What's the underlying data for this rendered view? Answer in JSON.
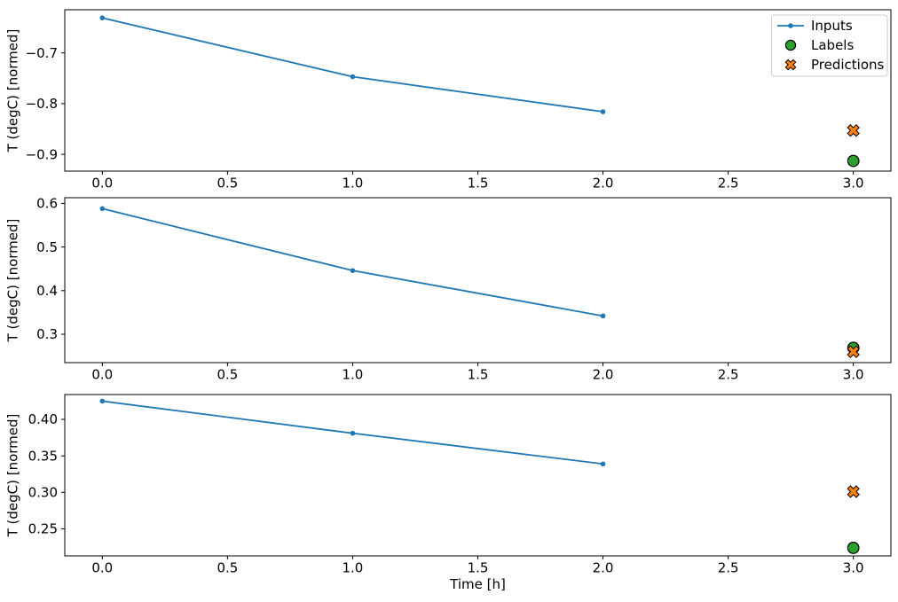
{
  "figure": {
    "background": "#ffffff",
    "text_color": "#000000"
  },
  "colors": {
    "inputs": "#1f77b4",
    "labels": "#2ca02c",
    "predictions": "#ff7f0e",
    "marker_edge": "#000000",
    "axis": "#000000",
    "legend_border": "#cccccc",
    "legend_bg": "#ffffff"
  },
  "xlabel": "Time [h]",
  "ylabel": "T (degC) [normed]",
  "legend": {
    "position": "upper right",
    "items": [
      "Inputs",
      "Labels",
      "Predictions"
    ]
  },
  "chart_data": [
    {
      "type": "line",
      "ylabel": "T (degC) [normed]",
      "xlabel": "",
      "xlim": [
        -0.15,
        3.15
      ],
      "ylim": [
        -0.933,
        -0.615
      ],
      "xticks": {
        "values": [
          0,
          0.5,
          1,
          1.5,
          2,
          2.5,
          3
        ],
        "labels": [
          "0.0",
          "0.5",
          "1.0",
          "1.5",
          "2.0",
          "2.5",
          "3.0"
        ]
      },
      "yticks": {
        "values": [
          -0.9,
          -0.8,
          -0.7
        ],
        "labels": [
          "−0.9",
          "−0.8",
          "−0.7"
        ]
      },
      "legend": true,
      "grid": false,
      "series": [
        {
          "name": "Inputs",
          "plot": "line",
          "marker": "point",
          "color": "#1f77b4",
          "x": [
            0,
            1,
            2
          ],
          "y": [
            -0.631,
            -0.747,
            -0.816
          ]
        },
        {
          "name": "Labels",
          "plot": "scatter",
          "marker": "circle",
          "color": "#2ca02c",
          "edgecolor": "#000000",
          "x": [
            3
          ],
          "y": [
            -0.913
          ]
        },
        {
          "name": "Predictions",
          "plot": "scatter",
          "marker": "X",
          "color": "#ff7f0e",
          "edgecolor": "#000000",
          "x": [
            3
          ],
          "y": [
            -0.853
          ]
        }
      ]
    },
    {
      "type": "line",
      "ylabel": "T (degC) [normed]",
      "xlabel": "",
      "xlim": [
        -0.15,
        3.15
      ],
      "ylim": [
        0.235,
        0.613
      ],
      "xticks": {
        "values": [
          0,
          0.5,
          1,
          1.5,
          2,
          2.5,
          3
        ],
        "labels": [
          "0.0",
          "0.5",
          "1.0",
          "1.5",
          "2.0",
          "2.5",
          "3.0"
        ]
      },
      "yticks": {
        "values": [
          0.3,
          0.4,
          0.5,
          0.6
        ],
        "labels": [
          "0.3",
          "0.4",
          "0.5",
          "0.6"
        ]
      },
      "legend": false,
      "grid": false,
      "series": [
        {
          "name": "Inputs",
          "plot": "line",
          "marker": "point",
          "color": "#1f77b4",
          "x": [
            0,
            1,
            2
          ],
          "y": [
            0.588,
            0.446,
            0.342
          ]
        },
        {
          "name": "Labels",
          "plot": "scatter",
          "marker": "circle",
          "color": "#2ca02c",
          "edgecolor": "#000000",
          "x": [
            3
          ],
          "y": [
            0.269
          ]
        },
        {
          "name": "Predictions",
          "plot": "scatter",
          "marker": "X",
          "color": "#ff7f0e",
          "edgecolor": "#000000",
          "x": [
            3
          ],
          "y": [
            0.26
          ]
        }
      ]
    },
    {
      "type": "line",
      "ylabel": "T (degC) [normed]",
      "xlabel": "Time [h]",
      "xlim": [
        -0.15,
        3.15
      ],
      "ylim": [
        0.213,
        0.434
      ],
      "xticks": {
        "values": [
          0,
          0.5,
          1,
          1.5,
          2,
          2.5,
          3
        ],
        "labels": [
          "0.0",
          "0.5",
          "1.0",
          "1.5",
          "2.0",
          "2.5",
          "3.0"
        ]
      },
      "yticks": {
        "values": [
          0.25,
          0.3,
          0.35,
          0.4
        ],
        "labels": [
          "0.25",
          "0.30",
          "0.35",
          "0.40"
        ]
      },
      "legend": false,
      "grid": false,
      "series": [
        {
          "name": "Inputs",
          "plot": "line",
          "marker": "point",
          "color": "#1f77b4",
          "x": [
            0,
            1,
            2
          ],
          "y": [
            0.425,
            0.381,
            0.339
          ]
        },
        {
          "name": "Labels",
          "plot": "scatter",
          "marker": "circle",
          "color": "#2ca02c",
          "edgecolor": "#000000",
          "x": [
            3
          ],
          "y": [
            0.224
          ]
        },
        {
          "name": "Predictions",
          "plot": "scatter",
          "marker": "X",
          "color": "#ff7f0e",
          "edgecolor": "#000000",
          "x": [
            3
          ],
          "y": [
            0.301
          ]
        }
      ]
    }
  ]
}
